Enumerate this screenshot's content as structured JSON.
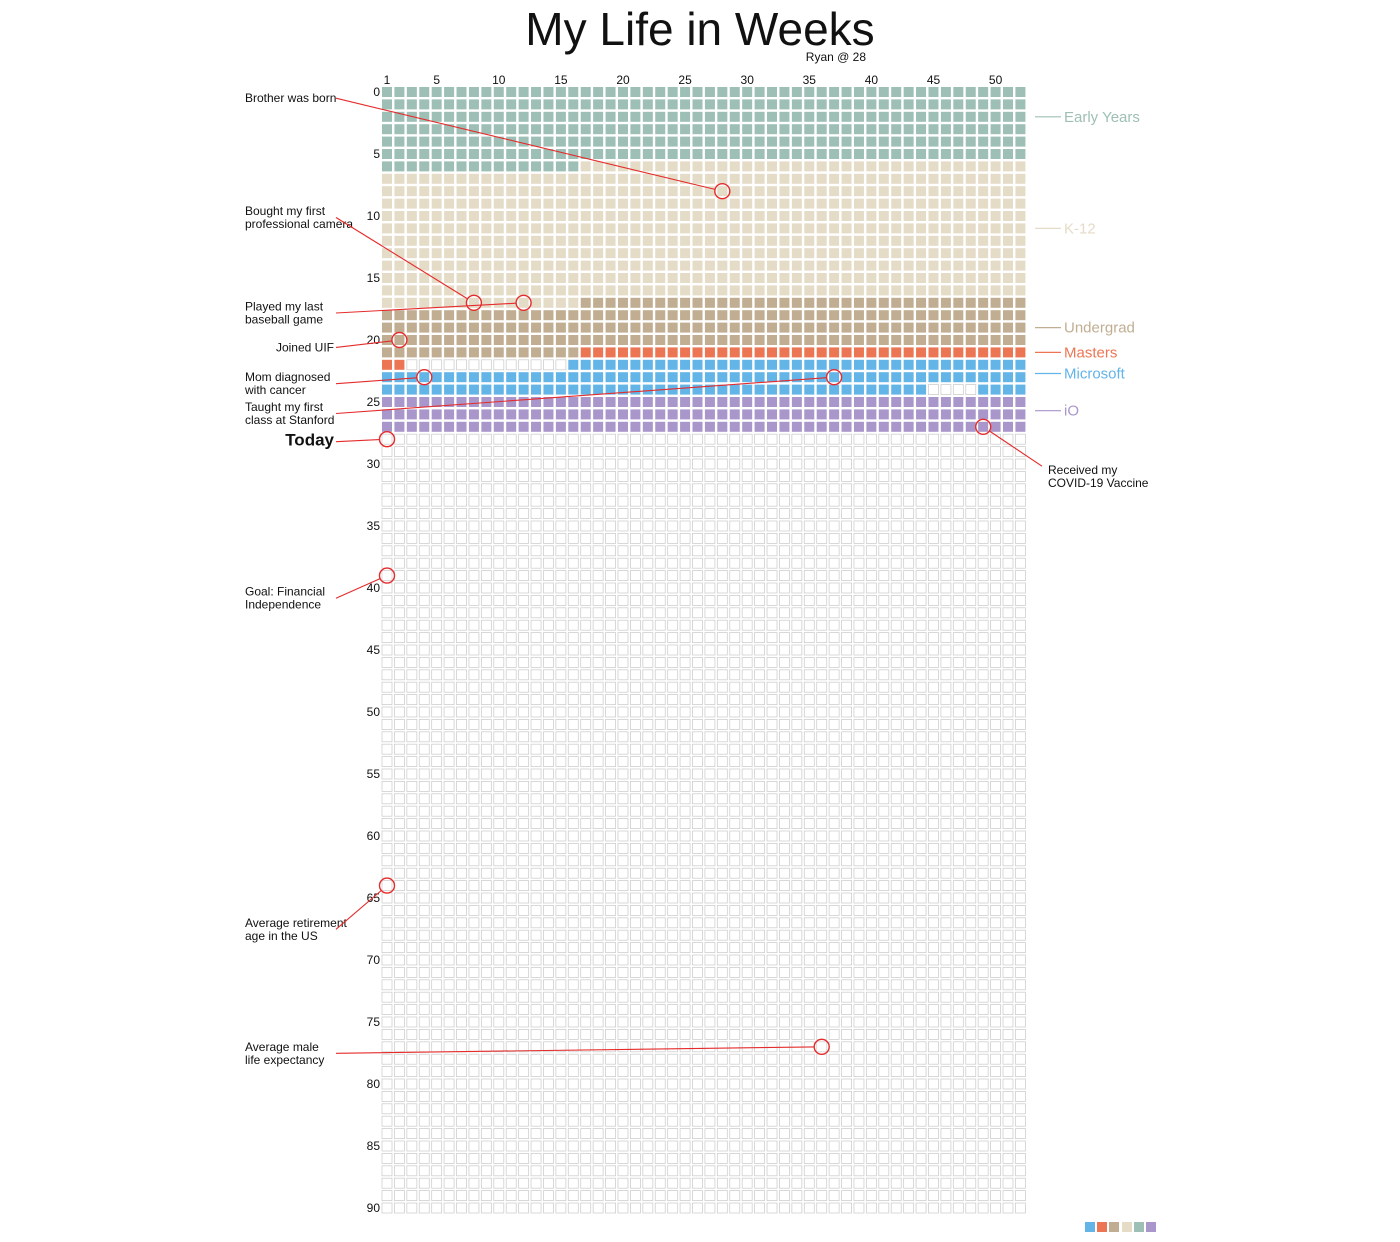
{
  "chart_data": {
    "type": "heatmap",
    "title": "My Life in Weeks",
    "subtitle": "Ryan @ 28",
    "x_ticks": [
      1,
      5,
      10,
      15,
      20,
      25,
      30,
      35,
      40,
      45,
      50
    ],
    "y_ticks": [
      0,
      5,
      10,
      15,
      20,
      25,
      30,
      35,
      40,
      45,
      50,
      55,
      60,
      65,
      70,
      75,
      80,
      85,
      90
    ],
    "weeks_per_row": 52,
    "row_count": 91,
    "empty_color": "#ffffff",
    "empty_stroke": "#cfcfcf",
    "phases": [
      {
        "name": "Early Years",
        "color": "#9dbfb5",
        "start": [
          0,
          0
        ],
        "end": [
          6,
          15
        ],
        "label_row": 2
      },
      {
        "name": "K-12",
        "color": "#e5dcc8",
        "start": [
          6,
          16
        ],
        "end": [
          17,
          15
        ],
        "label_row": 11
      },
      {
        "name": "Undergrad",
        "color": "#c1ae92",
        "start": [
          17,
          16
        ],
        "end": [
          21,
          15
        ],
        "label_row": 19
      },
      {
        "name": "Masters",
        "color": "#ec7553",
        "start": [
          21,
          16
        ],
        "end": [
          22,
          1
        ],
        "label_row": 21
      },
      {
        "name": "Microsoft",
        "color": "#63b4e7",
        "start": [
          22,
          15
        ],
        "end": [
          24,
          51
        ],
        "label_row": 22.7
      },
      {
        "name": "iO",
        "color": "#a996ca",
        "start": [
          25,
          0
        ],
        "end": [
          27,
          51
        ],
        "label_row": 25.7
      }
    ],
    "blank_weeks": [
      [
        24,
        44
      ],
      [
        24,
        45
      ],
      [
        24,
        46
      ],
      [
        24,
        47
      ]
    ],
    "annotations": [
      {
        "lines": [
          "Brother was born"
        ],
        "year": 8,
        "week": 28,
        "side": "left",
        "text_row": 0.5
      },
      {
        "lines": [
          "Bought my first",
          "professional camera"
        ],
        "year": 17,
        "week": 8,
        "side": "left",
        "text_row": 9.6
      },
      {
        "lines": [
          "Played my last",
          "baseball game"
        ],
        "year": 17,
        "week": 12,
        "side": "left",
        "text_row": 17.3
      },
      {
        "lines": [
          "Joined UIF"
        ],
        "year": 20,
        "week": 2,
        "side": "left",
        "text_row": 20.6
      },
      {
        "lines": [
          "Mom diagnosed",
          "with cancer"
        ],
        "year": 23,
        "week": 4,
        "side": "left",
        "text_row": 23.0
      },
      {
        "lines": [
          "Taught my first",
          "class at Stanford"
        ],
        "year": 23,
        "week": 37,
        "side": "left",
        "text_row": 25.4
      },
      {
        "lines": [
          "Received my",
          "COVID-19 Vaccine"
        ],
        "year": 27,
        "week": 49,
        "side": "right",
        "text_row": 30.5
      },
      {
        "lines": [
          "Today"
        ],
        "year": 28,
        "week": 1,
        "side": "left",
        "text_row": 28.2,
        "bold": true
      },
      {
        "lines": [
          "Goal: Financial",
          "Independence"
        ],
        "year": 39,
        "week": 1,
        "side": "left",
        "text_row": 40.3
      },
      {
        "lines": [
          "Average retirement",
          "age in the US"
        ],
        "year": 64,
        "week": 1,
        "side": "left",
        "text_row": 67.0
      },
      {
        "lines": [
          "Average male",
          "life expectancy"
        ],
        "year": 77,
        "week": 36,
        "side": "left",
        "text_row": 77.0
      }
    ],
    "marker_color": "#e52b2b",
    "legend_swatches": [
      "#63b4e7",
      "#ec7553",
      "#c1ae92",
      "#e5dcc8",
      "#9dbfb5",
      "#a996ca"
    ]
  }
}
